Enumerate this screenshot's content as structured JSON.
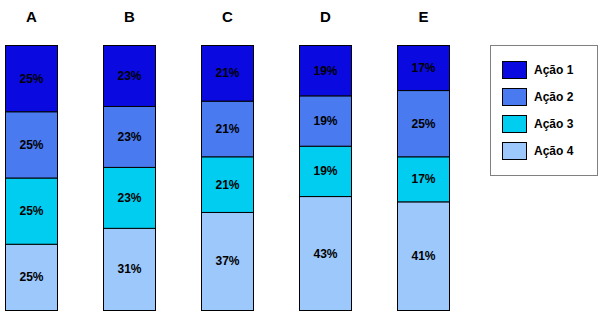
{
  "chart_data": {
    "type": "bar",
    "stacked": true,
    "data_labels": true,
    "tick_labels": "x",
    "legend": "right",
    "categories": [
      "A",
      "B",
      "C",
      "D",
      "E"
    ],
    "ylim": [
      0,
      100
    ],
    "series": [
      {
        "name": "Ação 1",
        "color": "#0a0ae0",
        "values": [
          25,
          23,
          21,
          19,
          17
        ],
        "value_labels": [
          "25%",
          "23%",
          "21%",
          "19%",
          "17%"
        ]
      },
      {
        "name": "Ação 2",
        "color": "#4a7af0",
        "values": [
          25,
          23,
          21,
          19,
          25
        ],
        "value_labels": [
          "25%",
          "23%",
          "21%",
          "19%",
          "25%"
        ]
      },
      {
        "name": "Ação 3",
        "color": "#00cdf0",
        "values": [
          25,
          23,
          21,
          19,
          17
        ],
        "value_labels": [
          "25%",
          "23%",
          "21%",
          "19%",
          "17%"
        ]
      },
      {
        "name": "Ação 4",
        "color": "#9cc8fc",
        "values": [
          25,
          31,
          37,
          43,
          41
        ],
        "value_labels": [
          "25%",
          "31%",
          "37%",
          "43%",
          "41%"
        ]
      }
    ]
  }
}
